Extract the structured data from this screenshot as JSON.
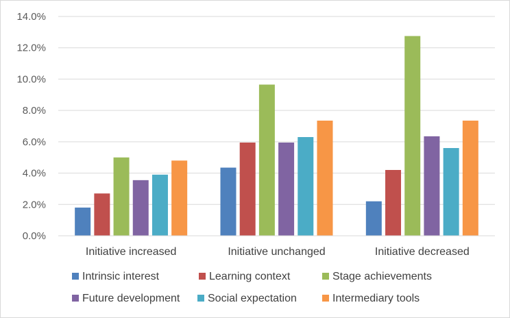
{
  "chart_data": {
    "type": "bar",
    "title": "",
    "xlabel": "",
    "ylabel": "",
    "categories": [
      "Initiative increased",
      "Initiative unchanged",
      "Initiative decreased"
    ],
    "yticks": [
      "0.0%",
      "2.0%",
      "4.0%",
      "6.0%",
      "8.0%",
      "10.0%",
      "12.0%",
      "14.0%"
    ],
    "ylim": [
      0,
      14
    ],
    "grid": true,
    "legend_position": "bottom",
    "series": [
      {
        "name": "Intrinsic interest",
        "color": "#4f81bd",
        "values": [
          1.8,
          4.35,
          2.2
        ]
      },
      {
        "name": "Learning context",
        "color": "#c0504d",
        "values": [
          2.7,
          5.95,
          4.2
        ]
      },
      {
        "name": "Stage achievements",
        "color": "#9bbb59",
        "values": [
          5.0,
          9.65,
          12.75
        ]
      },
      {
        "name": "Future development",
        "color": "#8064a2",
        "values": [
          3.55,
          5.95,
          6.35
        ]
      },
      {
        "name": "Social expectation",
        "color": "#4bacc6",
        "values": [
          3.9,
          6.3,
          5.6
        ]
      },
      {
        "name": "Intermediary tools",
        "color": "#f79646",
        "values": [
          4.8,
          7.35,
          7.35
        ]
      }
    ]
  }
}
